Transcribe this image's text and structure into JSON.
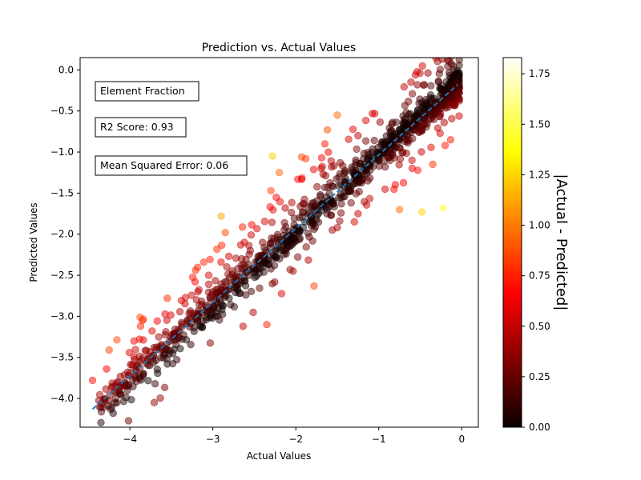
{
  "chart_data": {
    "type": "scatter",
    "title": "Prediction vs. Actual Values",
    "xlabel": "Actual Values",
    "ylabel": "Predicted Values",
    "xlim": [
      -4.6,
      0.2
    ],
    "ylim": [
      -4.35,
      0.15
    ],
    "xticks": [
      -4,
      -3,
      -2,
      -1,
      0
    ],
    "xtick_labels": [
      "−4",
      "−3",
      "−2",
      "−1",
      "0"
    ],
    "yticks": [
      0,
      -0.5,
      -1,
      -1.5,
      -2,
      -2.5,
      -3,
      -3.5,
      -4
    ],
    "ytick_labels": [
      "0.0",
      "−0.5",
      "−1.0",
      "−1.5",
      "−2.0",
      "−2.5",
      "−3.0",
      "−3.5",
      "−4.0"
    ],
    "grid": false,
    "colormap": "hot",
    "marker_alpha": 0.5,
    "colorbar": {
      "label": "|Actual - Predicted|",
      "range": [
        0,
        1.83
      ],
      "ticks": [
        0,
        0.25,
        0.5,
        0.75,
        1.0,
        1.25,
        1.5,
        1.75
      ],
      "tick_labels": [
        "0.00",
        "0.25",
        "0.50",
        "0.75",
        "1.00",
        "1.25",
        "1.50",
        "1.75"
      ]
    },
    "reference_line": {
      "x": [
        -4.45,
        -0.05
      ],
      "y": [
        -4.13,
        -0.18
      ],
      "style": "dashed",
      "color": "#1f77b4"
    },
    "annotations": [
      {
        "text": "Element Fraction"
      },
      {
        "text": "R2 Score: 0.93"
      },
      {
        "text": "Mean Squared Error: 0.06"
      }
    ],
    "outliers": [
      [
        -0.22,
        -1.68
      ],
      [
        -0.48,
        -1.73
      ],
      [
        -0.75,
        -1.7
      ],
      [
        -1.5,
        -0.55
      ],
      [
        -1.62,
        -0.73
      ],
      [
        -2.28,
        -1.05
      ],
      [
        -2.9,
        -1.78
      ],
      [
        -2.85,
        -1.98
      ],
      [
        -1.78,
        -2.63
      ],
      [
        -2.35,
        -3.1
      ],
      [
        -4.45,
        -3.78
      ],
      [
        -4.25,
        -3.41
      ],
      [
        -3.85,
        -3.05
      ],
      [
        -1.65,
        -0.9
      ],
      [
        -1.93,
        -1.06
      ],
      [
        -1.88,
        -1.08
      ],
      [
        -2.3,
        -1.47
      ],
      [
        -1.5,
        -1.92
      ],
      [
        -2.2,
        -1.25
      ],
      [
        -3.55,
        -2.78
      ],
      [
        -2.7,
        -2.42
      ],
      [
        -0.2,
        -0.92
      ],
      [
        -0.35,
        -1.15
      ],
      [
        -0.6,
        -1.1
      ],
      [
        -1.25,
        -0.8
      ],
      [
        -3.05,
        -2.5
      ],
      [
        -2.95,
        -2.72
      ],
      [
        -3.95,
        -3.3
      ],
      [
        -2.62,
        -2.1
      ],
      [
        -1.25,
        -1.75
      ]
    ]
  }
}
